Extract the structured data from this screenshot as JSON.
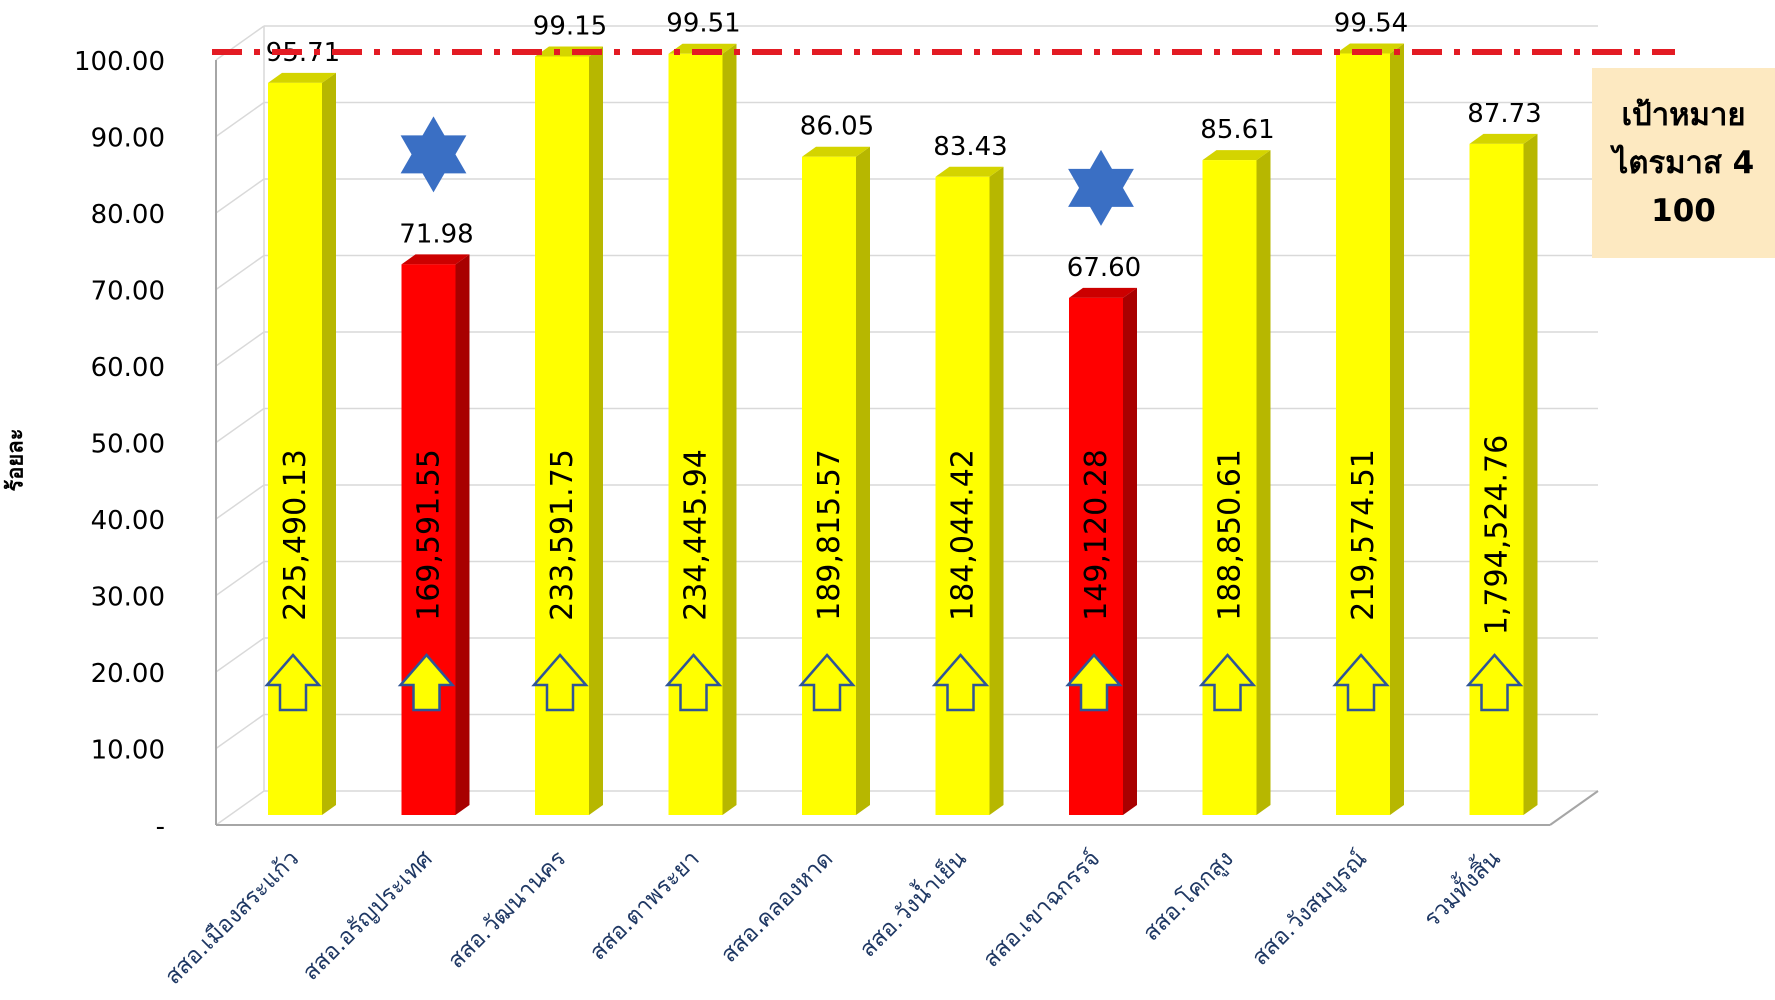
{
  "chart_data": {
    "type": "bar",
    "ylabel": "ร้อยละ",
    "ylim": [
      0,
      100
    ],
    "y_ticks": [
      "-",
      "10.00",
      "20.00",
      "30.00",
      "40.00",
      "50.00",
      "60.00",
      "70.00",
      "80.00",
      "90.00",
      "100.00"
    ],
    "grid": true,
    "target_line": {
      "value": 100,
      "color": "#e31b23",
      "style": "dash-dot"
    },
    "categories": [
      "สสอ.เมืองสระแก้ว",
      "สสอ.อรัญประเทศ",
      "สสอ.วัฒนานคร",
      "สสอ.ตาพระยา",
      "สสอ.คลองหาด",
      "สสอ.วังน้ำเย็น",
      "สสอ.เขาฉกรรจ์",
      "สสอ.โคกสูง",
      "สสอ.วังสมบูรณ์",
      "รวมทั้งสิ้น"
    ],
    "values": [
      95.71,
      71.98,
      99.15,
      99.51,
      86.05,
      83.43,
      67.6,
      85.61,
      99.54,
      87.73
    ],
    "value_labels": [
      "95.71",
      "71.98",
      "99.15",
      "99.51",
      "86.05",
      "83.43",
      "67.60",
      "85.61",
      "99.54",
      "87.73"
    ],
    "amount_labels": [
      "225,490.13",
      "169,591.55",
      "233,591.75",
      "234,445.94",
      "189,815.57",
      "184,044.42",
      "149,120.28",
      "188,850.61",
      "219,574.51",
      "1,794,524.76"
    ],
    "bar_status": [
      "ok",
      "low",
      "ok",
      "ok",
      "ok",
      "ok",
      "low",
      "ok",
      "ok",
      "ok"
    ],
    "star_marker": [
      false,
      true,
      false,
      false,
      false,
      false,
      true,
      false,
      false,
      false
    ],
    "colors": {
      "ok_front": "#ffff00",
      "ok_side": "#b7b700",
      "ok_top": "#d4d400",
      "low_front": "#ff0000",
      "low_side": "#a80000",
      "low_top": "#cc0000",
      "star": "#3a6fc4",
      "arrow_stroke": "#2f5597",
      "grid": "#d9d9d9"
    }
  },
  "target_box": {
    "line1": "เป้าหมาย",
    "line2": "ไตรมาส 4",
    "line3": "100"
  }
}
